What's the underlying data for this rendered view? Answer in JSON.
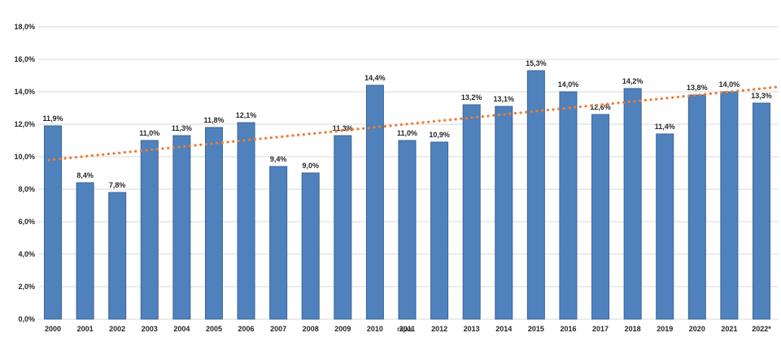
{
  "chart_data": {
    "type": "bar",
    "title": "",
    "xlabel": "",
    "ylabel": "",
    "categories": [
      "2000",
      "2001",
      "2002",
      "2003",
      "2004",
      "2005",
      "2006",
      "2007",
      "2008",
      "2009",
      "2010",
      "2011",
      "2012",
      "2013",
      "2014",
      "2015",
      "2016",
      "2017",
      "2018",
      "2019",
      "2020",
      "2021",
      "2022*"
    ],
    "values": [
      11.9,
      8.4,
      7.8,
      11.0,
      11.3,
      11.8,
      12.1,
      9.4,
      9.0,
      11.3,
      14.4,
      11.0,
      10.9,
      13.2,
      13.1,
      15.3,
      14.0,
      12.6,
      14.2,
      11.4,
      13.8,
      14.0,
      13.3
    ],
    "value_labels": [
      "11,9%",
      "8,4%",
      "7,8%",
      "11,0%",
      "11,3%",
      "11,8%",
      "12,1%",
      "9,4%",
      "9,0%",
      "11,3%",
      "14,4%",
      "11,0%",
      "10,9%",
      "13,2%",
      "13,1%",
      "15,3%",
      "14,0%",
      "12,6%",
      "14,2%",
      "11,4%",
      "13,8%",
      "14,0%",
      "13,3%"
    ],
    "y_ticks": [
      "0,0%",
      "2,0%",
      "4,0%",
      "6,0%",
      "8,0%",
      "10,0%",
      "12,0%",
      "14,0%",
      "16,0%",
      "18,0%"
    ],
    "ylim": [
      0,
      18
    ],
    "y_tick_step": 2,
    "grid": true,
    "legend": "none",
    "trendline": {
      "style": "dotted",
      "color": "#ed7d31",
      "start_value": 9.8,
      "end_value": 14.3
    },
    "x_label_overlap_artifact": {
      "year": "2011",
      "overlay_text": "rajaa"
    },
    "colors": {
      "bar_fill": "#4f81bd",
      "bar_border": "#3a6494",
      "gridline": "#d9d9d9",
      "label_text": "#262626",
      "background": "#ffffff"
    }
  }
}
